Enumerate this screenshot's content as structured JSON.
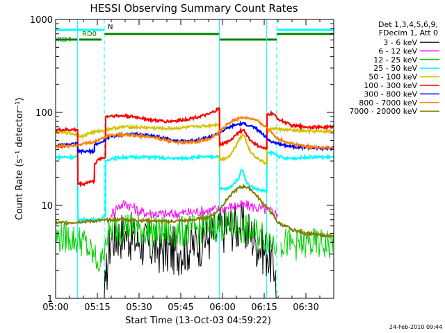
{
  "chart_data": {
    "type": "line",
    "title": "HESSI Observing Summary Count Rates",
    "xlabel": "Start Time (13-Oct-03 04:59:22)",
    "ylabel": "Count Rate (s⁻¹ detector⁻¹)",
    "y_scale": "log",
    "ylim": [
      1,
      1000
    ],
    "xlim_minutes": [
      0,
      100
    ],
    "x_ticks": [
      "05:00",
      "05:15",
      "05:30",
      "05:45",
      "06:00",
      "06:15",
      "06:30"
    ],
    "y_ticks": [
      "1",
      "10",
      "100",
      "1000"
    ],
    "footer": "24-Feb-2010 09:44",
    "legend_header": [
      "Det 1,3,4,5,6,9,",
      "FDecim 1, Att 0"
    ],
    "annotations": [
      "N",
      "RD0",
      "RD4"
    ],
    "series": [
      {
        "name": "3 - 6 keV",
        "color": "#000000",
        "x": [
          0,
          17,
          17.5,
          18,
          19,
          20,
          25,
          30,
          35,
          40,
          45,
          50,
          55,
          58,
          60,
          62,
          64,
          66,
          68,
          70,
          72,
          74,
          76,
          79,
          79.5,
          81
        ],
        "y": [
          null,
          null,
          1.0,
          1.5,
          3.0,
          4.5,
          5,
          4,
          3.5,
          3.2,
          3.3,
          3.8,
          4.5,
          5,
          5.5,
          6,
          6,
          5.8,
          5.5,
          5,
          4,
          3.5,
          3,
          2.0,
          1.0,
          null
        ]
      },
      {
        "name": "6 - 12 keV",
        "color": "#ff00ff",
        "x": [
          20,
          22,
          25,
          28,
          30,
          35,
          40,
          45,
          50,
          55,
          58,
          60,
          62,
          64,
          66,
          68,
          70,
          72,
          74,
          76,
          78,
          80
        ],
        "y": [
          8,
          9.5,
          10.5,
          9.5,
          8.5,
          8.2,
          8,
          8.2,
          8.5,
          8.8,
          9,
          9.2,
          9.5,
          9.8,
          10,
          10,
          9.8,
          9.5,
          9.2,
          8.8,
          8.5,
          8
        ]
      },
      {
        "name": "12 - 25 keV",
        "color": "#00d000",
        "x": [
          0,
          5,
          8,
          10,
          12,
          14,
          15,
          16,
          16.5,
          17,
          18,
          20,
          25,
          30,
          35,
          40,
          45,
          50,
          55,
          60,
          64,
          66,
          68,
          70,
          72,
          74,
          76,
          78,
          79.5,
          80,
          81,
          85,
          90,
          95,
          100
        ],
        "y": [
          4.5,
          4.5,
          4.2,
          4.2,
          3.2,
          2.8,
          2.5,
          2.2,
          2.4,
          3.0,
          4.5,
          5.5,
          6,
          5.5,
          5.2,
          5,
          5.2,
          5.5,
          5.8,
          6,
          5.8,
          5.6,
          5.5,
          5.3,
          5,
          4.8,
          4.5,
          4.2,
          3.8,
          null,
          4.0,
          3.8,
          3.8,
          3.8,
          3.8
        ]
      },
      {
        "name": "25 - 50 keV",
        "color": "#00ffff",
        "x": [
          0,
          7.9,
          8,
          9,
          10,
          11,
          12,
          13,
          14,
          15,
          16,
          17,
          17.9,
          18,
          20,
          25,
          30,
          35,
          40,
          45,
          50,
          55,
          58.9,
          59,
          62,
          64,
          66,
          66.5,
          67,
          67.5,
          68,
          69,
          70,
          72,
          74,
          75.9,
          76,
          78,
          80,
          82,
          85,
          90,
          95,
          100
        ],
        "y": [
          33,
          33,
          7,
          7,
          7,
          7,
          7,
          7,
          7,
          7,
          7,
          7.5,
          7.5,
          30,
          32,
          33,
          33,
          33,
          32,
          32,
          33,
          33,
          34,
          15,
          15,
          17,
          20,
          23,
          24,
          23,
          20,
          17,
          16,
          15,
          14.5,
          14,
          36,
          37,
          34,
          32,
          32,
          33,
          33,
          33
        ]
      },
      {
        "name": "50 - 100 keV",
        "color": "#d8c000",
        "x": [
          0,
          5,
          10,
          12,
          15,
          18,
          20,
          25,
          30,
          35,
          40,
          45,
          50,
          55,
          58.9,
          59,
          61,
          63,
          64,
          65,
          66,
          67,
          67.5,
          68,
          69,
          70,
          72,
          74,
          75.9,
          76,
          78,
          80,
          85,
          90,
          95,
          100
        ],
        "y": [
          62,
          60,
          55,
          60,
          62,
          65,
          67,
          70,
          69,
          68,
          67,
          68,
          70,
          72,
          75,
          31,
          32,
          35,
          40,
          45,
          52,
          56,
          57,
          55,
          45,
          38,
          33,
          30,
          28,
          60,
          68,
          66,
          64,
          63,
          62,
          63
        ]
      },
      {
        "name": "100 - 300 keV",
        "color": "#ff0000",
        "x": [
          0,
          7.9,
          8,
          10,
          12,
          13.9,
          14,
          16,
          17.9,
          18,
          20,
          25,
          30,
          35,
          40,
          45,
          50,
          55,
          58.9,
          59,
          61,
          63,
          64,
          65,
          66,
          67,
          67.5,
          68,
          69,
          70,
          72,
          74,
          75.9,
          76,
          78,
          80,
          85,
          90,
          95,
          100
        ],
        "y": [
          65,
          65,
          17,
          17,
          18,
          18,
          28,
          32,
          33,
          90,
          92,
          92,
          88,
          82,
          80,
          82,
          88,
          95,
          110,
          45,
          47,
          50,
          54,
          58,
          62,
          64,
          65,
          62,
          56,
          50,
          45,
          42,
          40,
          95,
          98,
          85,
          72,
          70,
          69,
          70
        ]
      },
      {
        "name": "300 - 800 keV",
        "color": "#0000ff",
        "x": [
          0,
          5,
          7.9,
          8,
          10,
          13.9,
          14,
          16,
          17,
          18,
          20,
          25,
          30,
          35,
          40,
          45,
          50,
          55,
          58,
          60,
          62,
          64,
          66,
          68,
          70,
          72,
          74,
          76,
          78,
          80,
          85,
          90,
          95,
          100
        ],
        "y": [
          44,
          45,
          46,
          38,
          38,
          38,
          45,
          47,
          48,
          52,
          55,
          58,
          58,
          56,
          52,
          49,
          50,
          54,
          58,
          63,
          68,
          72,
          75,
          75,
          72,
          67,
          60,
          52,
          48,
          46,
          43,
          42,
          41,
          41
        ]
      },
      {
        "name": "800 - 7000 keV",
        "color": "#ff8000",
        "x": [
          0,
          5,
          10,
          14,
          16,
          18,
          20,
          25,
          30,
          35,
          40,
          45,
          50,
          55,
          58,
          60,
          62,
          64,
          66,
          68,
          70,
          72,
          74,
          76,
          78,
          80,
          85,
          90,
          95,
          100
        ],
        "y": [
          43,
          44,
          46,
          48,
          52,
          55,
          57,
          58,
          56,
          54,
          50,
          47,
          48,
          52,
          58,
          66,
          76,
          82,
          86,
          88,
          86,
          82,
          76,
          68,
          60,
          52,
          46,
          43,
          42,
          41
        ]
      },
      {
        "name": "7000 - 20000 keV",
        "color": "#808000",
        "x": [
          0,
          5,
          10,
          15,
          20,
          25,
          30,
          35,
          40,
          45,
          50,
          55,
          58,
          60,
          62,
          64,
          66,
          68,
          70,
          72,
          74,
          76,
          78,
          80,
          85,
          90,
          95,
          100
        ],
        "y": [
          6.5,
          6.5,
          6.7,
          6.8,
          7.0,
          7.0,
          6.9,
          6.8,
          6.7,
          6.8,
          7.0,
          7.5,
          8.5,
          10,
          12,
          14,
          15.5,
          16,
          15,
          13,
          11,
          9.5,
          8,
          6.5,
          5.5,
          5.0,
          4.8,
          4.6
        ]
      }
    ],
    "overlays": {
      "n_bars": {
        "color": "#00ffff",
        "segments": [
          [
            0,
            17.5
          ],
          [
            79.5,
            100
          ]
        ]
      },
      "rd0_bars": {
        "color": "#008000",
        "segments": [
          [
            17.5,
            58.9
          ],
          [
            79.5,
            100
          ]
        ]
      },
      "rd4_bars": {
        "color": "#008000",
        "segments": [
          [
            0,
            7.9
          ],
          [
            8.5,
            16.5
          ],
          [
            58.9,
            79.5
          ]
        ]
      },
      "vlines": {
        "color": "#00ffff",
        "solid": [
          7.9,
          58.9,
          75.9
        ],
        "dashed": [
          17.5,
          79.5,
          100
        ]
      }
    }
  }
}
